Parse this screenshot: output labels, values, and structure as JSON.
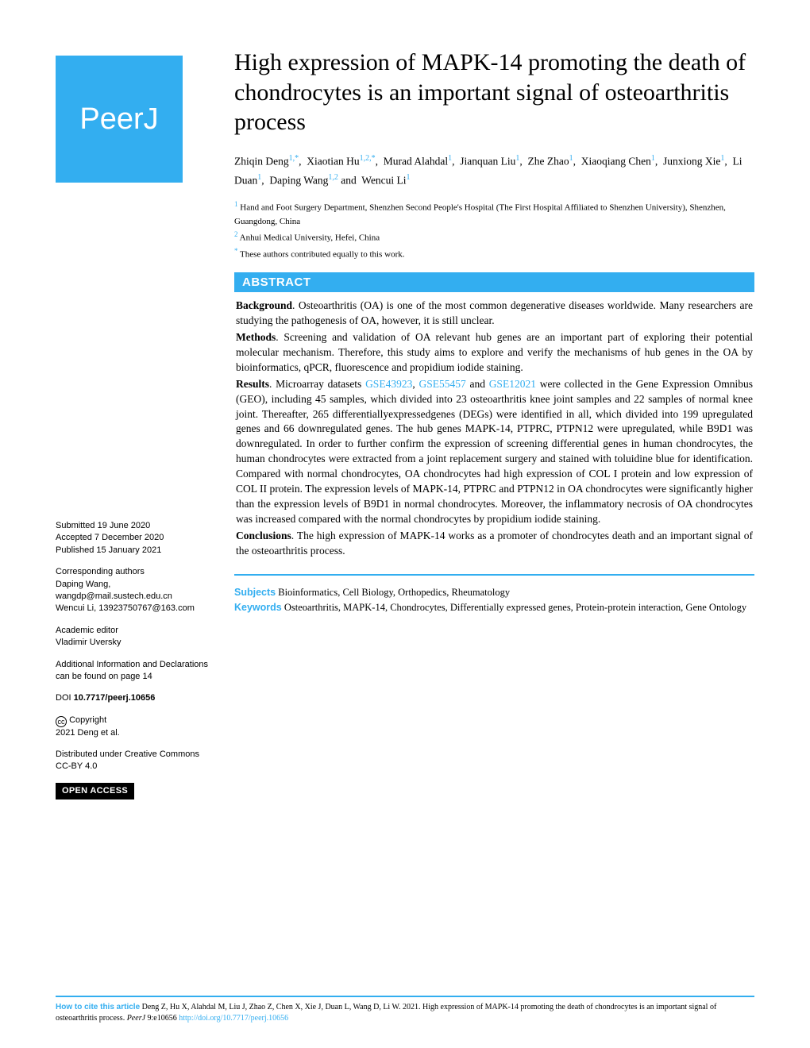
{
  "colors": {
    "accent": "#33aef0",
    "text": "#000000",
    "background": "#ffffff"
  },
  "logo": "PeerJ",
  "title": "High expression of MAPK-14 promoting the death of chondrocytes is an important signal of osteoarthritis process",
  "authors_html": "Zhiqin Deng<sup class='sup'>1,*</sup>,&nbsp; Xiaotian Hu<sup class='sup'>1,2,*</sup>,&nbsp; Murad Alahdal<sup class='sup'>1</sup>,&nbsp; Jianquan Liu<sup class='sup'>1</sup>,&nbsp; Zhe Zhao<sup class='sup'>1</sup>,&nbsp; Xiaoqiang Chen<sup class='sup'>1</sup>,&nbsp; Junxiong Xie<sup class='sup'>1</sup>,&nbsp; Li Duan<sup class='sup'>1</sup>,&nbsp; Daping Wang<sup class='sup'>1,2</sup> and&nbsp; Wencui Li<sup class='sup'>1</sup>",
  "affiliations": [
    {
      "num": "1",
      "text": "Hand and Foot Surgery Department, Shenzhen Second People's Hospital (The First Hospital Affiliated to Shenzhen University), Shenzhen, Guangdong, China"
    },
    {
      "num": "2",
      "text": "Anhui Medical University, Hefei, China"
    },
    {
      "num": "*",
      "text": "These authors contributed equally to this work."
    }
  ],
  "abstract_heading": "ABSTRACT",
  "abstract": {
    "background_label": "Background",
    "background": ". Osteoarthritis (OA) is one of the most common degenerative diseases worldwide. Many researchers are studying the pathogenesis of OA, however, it is still unclear.",
    "methods_label": "Methods",
    "methods": ". Screening and validation of OA relevant hub genes are an important part of exploring their potential molecular mechanism. Therefore, this study aims to explore and verify the mechanisms of hub genes in the OA by bioinformatics, qPCR, fluorescence and propidium iodide staining.",
    "results_label": "Results",
    "results_pre": ". Microarray datasets ",
    "gse1": "GSE43923",
    "comma1": ", ",
    "gse2": "GSE55457",
    "and": " and ",
    "gse3": "GSE12021",
    "results_post": " were collected in the Gene Expression Omnibus (GEO), including 45 samples, which divided into 23 osteoarthritis knee joint samples and 22 samples of normal knee joint. Thereafter, 265 differentiallyexpressedgenes (DEGs) were identified in all, which divided into 199 upregulated genes and 66 downregulated genes. The hub genes MAPK-14, PTPRC, PTPN12 were upregulated, while B9D1 was downregulated. In order to further confirm the expression of screening differential genes in human chondrocytes, the human chondrocytes were extracted from a joint replacement surgery and stained with toluidine blue for identification. Compared with normal chondrocytes, OA chondrocytes had high expression of COL I protein and low expression of COL II protein. The expression levels of MAPK-14, PTPRC and PTPN12 in OA chondrocytes were significantly higher than the expression levels of B9D1 in normal chondrocytes. Moreover, the inflammatory necrosis of OA chondrocytes was increased compared with the normal chondrocytes by propidium iodide staining.",
    "conclusions_label": "Conclusions",
    "conclusions": ". The high expression of MAPK-14 works as a promoter of chondrocytes death and an important signal of the osteoarthritis process."
  },
  "subjects_label": "Subjects",
  "subjects": " Bioinformatics, Cell Biology, Orthopedics, Rheumatology",
  "keywords_label": "Keywords",
  "keywords": " Osteoarthritis, MAPK-14, Chondrocytes, Differentially expressed genes, Protein-protein interaction, Gene Ontology",
  "sidebar": {
    "submitted_label": "Submitted",
    "submitted": " 19 June 2020",
    "accepted_label": "Accepted",
    "accepted": " 7 December 2020",
    "published_label": "Published",
    "published": " 15 January 2021",
    "corresponding_label": "Corresponding authors",
    "corresponding_1": "Daping Wang, wangdp@mail.sustech.edu.cn",
    "corresponding_2": "Wencui Li, 13923750767@163.com",
    "editor_label": "Academic editor",
    "editor": "Vladimir Uversky",
    "additional": "Additional Information and Declarations can be found on page 14",
    "doi_label": "DOI ",
    "doi": "10.7717/peerj.10656",
    "copyright_label": "Copyright",
    "copyright": "2021 Deng et al.",
    "distributed": "Distributed under Creative Commons CC-BY 4.0",
    "open_access": "OPEN ACCESS"
  },
  "footer": {
    "cite_label": "How to cite this article",
    "cite_text": " Deng Z, Hu X, Alahdal M, Liu J, Zhao Z, Chen X, Xie J, Duan L, Wang D, Li W. 2021. High expression of MAPK-14 promoting the death of chondrocytes is an important signal of osteoarthritis process. ",
    "journal": "PeerJ",
    "ref": " 9:e10656 ",
    "url": "http://doi.org/10.7717/peerj.10656"
  }
}
